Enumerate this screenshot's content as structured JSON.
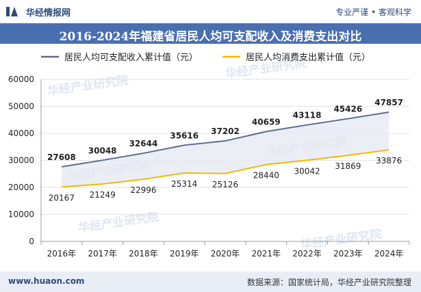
{
  "header": {
    "brand": "华经情报网",
    "slogan": "专业严谨 • 客观科学"
  },
  "title": "2016-2024年福建省居民人均可支配收入及消费支出对比",
  "footer": {
    "website": "www.huaon.com",
    "source": "数据来源：国家统计局，华经产业研究院整理"
  },
  "watermark": "华经产业研究院",
  "colors": {
    "income": "#5b6b8c",
    "spending": "#f5b800",
    "fill": "#e4e8f0",
    "title_bg": "#4a6fb0"
  },
  "chart_data": {
    "type": "line",
    "title": "2016-2024年福建省居民人均可支配收入及消费支出对比",
    "categories": [
      "2016年",
      "2017年",
      "2018年",
      "2019年",
      "2020年",
      "2021年",
      "2022年",
      "2023年",
      "2024年"
    ],
    "series": [
      {
        "name": "居民人均可支配收入累计值（元）",
        "values": [
          27608,
          30048,
          32644,
          35616,
          37202,
          40659,
          43118,
          45426,
          47857
        ]
      },
      {
        "name": "居民人均消费支出累计值（元）",
        "values": [
          20167,
          21249,
          22996,
          25314,
          25126,
          28440,
          30042,
          31869,
          33876
        ]
      }
    ],
    "ylim": [
      0,
      60000
    ],
    "yticks": [
      0,
      10000,
      20000,
      30000,
      40000,
      50000,
      60000
    ],
    "xlabel": "",
    "ylabel": "",
    "legend": "top"
  }
}
